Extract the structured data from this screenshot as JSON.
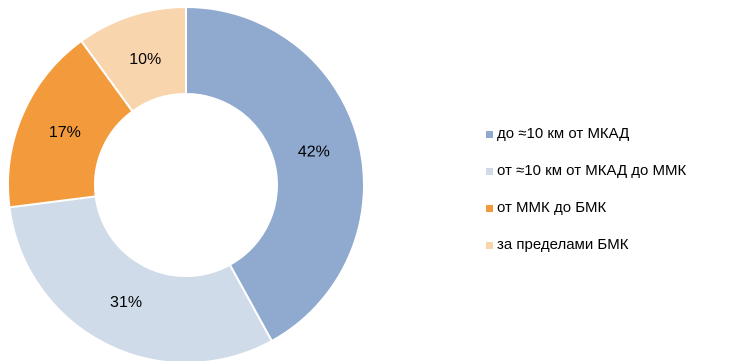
{
  "chart_data": {
    "type": "pie",
    "title": "",
    "style": "donut",
    "start_angle_degrees": 0,
    "direction": "clockwise",
    "legend_position": "right",
    "categories": [
      "до ≈10 км от МКАД",
      "от ≈10 км от МКАД до ММК",
      "от ММК до БМК",
      "за пределами БМК"
    ],
    "values": [
      42,
      31,
      17,
      10
    ],
    "data_labels": [
      "42%",
      "31%",
      "17%",
      "10%"
    ],
    "colors": [
      "#8fa9cf",
      "#d0dbe9",
      "#f39b3c",
      "#f9d5ae"
    ]
  }
}
